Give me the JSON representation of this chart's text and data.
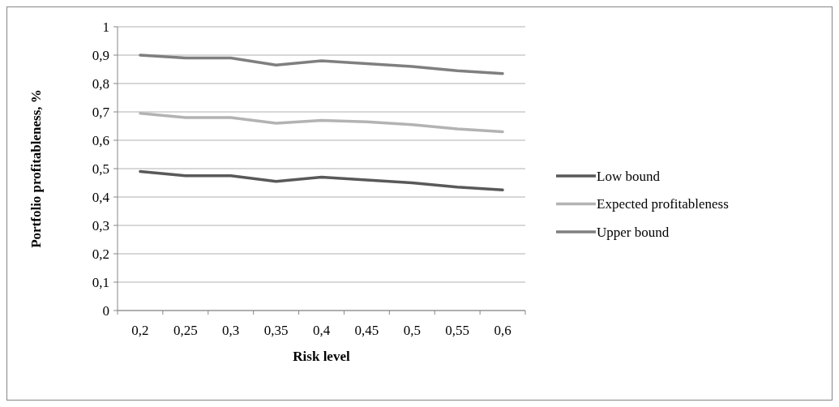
{
  "chart_data": {
    "type": "line",
    "xlabel": "Risk level",
    "ylabel": "Portfolio profitableness, %",
    "categories": [
      "0,2",
      "0,25",
      "0,3",
      "0,35",
      "0,4",
      "0,45",
      "0,5",
      "0,55",
      "0,6"
    ],
    "series": [
      {
        "name": "Low bound",
        "color": "#595959",
        "values": [
          0.49,
          0.475,
          0.475,
          0.455,
          0.47,
          0.46,
          0.45,
          0.435,
          0.425
        ]
      },
      {
        "name": "Expected profitableness",
        "color": "#b3b3b3",
        "values": [
          0.695,
          0.68,
          0.68,
          0.66,
          0.67,
          0.665,
          0.655,
          0.64,
          0.63
        ]
      },
      {
        "name": "Upper bound",
        "color": "#7f7f7f",
        "values": [
          0.9,
          0.89,
          0.89,
          0.865,
          0.88,
          0.87,
          0.86,
          0.845,
          0.835
        ]
      }
    ],
    "ylim": [
      0,
      1
    ],
    "yticks": [
      0,
      {
        "value": 0.1,
        "label": "0,1"
      },
      {
        "value": 0.2,
        "label": "0,2"
      },
      {
        "value": 0.3,
        "label": "0,3"
      },
      {
        "value": 0.4,
        "label": "0,4"
      },
      {
        "value": 0.5,
        "label": "0,5"
      },
      {
        "value": 0.6,
        "label": "0,6"
      },
      {
        "value": 0.7,
        "label": "0,7"
      },
      {
        "value": 0.8,
        "label": "0,8"
      },
      {
        "value": 0.9,
        "label": "0,9"
      },
      1
    ],
    "grid": "y",
    "legend": "right",
    "marker": "none",
    "line_style": "solid"
  }
}
